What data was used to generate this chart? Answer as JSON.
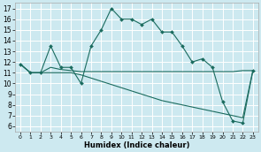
{
  "xlabel": "Humidex (Indice chaleur)",
  "bg_color": "#cde9f0",
  "grid_color": "#ffffff",
  "line_color": "#1a6b5e",
  "xlim": [
    -0.5,
    23.5
  ],
  "ylim": [
    5.5,
    17.5
  ],
  "xticks": [
    0,
    1,
    2,
    3,
    4,
    5,
    6,
    7,
    8,
    9,
    10,
    11,
    12,
    13,
    14,
    15,
    16,
    17,
    18,
    19,
    20,
    21,
    22,
    23
  ],
  "yticks": [
    6,
    7,
    8,
    9,
    10,
    11,
    12,
    13,
    14,
    15,
    16,
    17
  ],
  "s1_x": [
    0,
    1,
    2,
    3,
    4,
    5,
    6,
    7,
    8,
    9,
    10,
    11,
    12,
    13,
    14,
    15,
    16,
    17,
    18,
    19,
    20,
    21,
    22,
    23
  ],
  "s1_y": [
    11.8,
    11.0,
    11.0,
    13.5,
    11.5,
    11.5,
    10.0,
    13.5,
    15.0,
    17.0,
    16.0,
    16.0,
    15.5,
    16.0,
    14.8,
    14.8,
    13.5,
    12.0,
    12.3,
    11.5,
    8.3,
    6.5,
    6.3,
    11.2
  ],
  "s2_x": [
    0,
    1,
    2,
    3,
    4,
    5,
    6,
    7,
    8,
    9,
    10,
    11,
    12,
    13,
    14,
    15,
    16,
    17,
    18,
    19,
    20,
    21,
    22,
    23
  ],
  "s2_y": [
    11.8,
    11.0,
    11.0,
    11.5,
    11.3,
    11.2,
    11.1,
    11.1,
    11.1,
    11.1,
    11.1,
    11.1,
    11.1,
    11.1,
    11.1,
    11.1,
    11.1,
    11.1,
    11.1,
    11.1,
    11.1,
    11.1,
    11.2,
    11.2
  ],
  "s3_x": [
    0,
    1,
    2,
    3,
    4,
    5,
    6,
    7,
    8,
    9,
    10,
    11,
    12,
    13,
    14,
    15,
    16,
    17,
    18,
    19,
    20,
    21,
    22,
    23
  ],
  "s3_y": [
    11.8,
    11.0,
    11.0,
    11.0,
    11.0,
    11.0,
    10.8,
    10.5,
    10.2,
    9.9,
    9.6,
    9.3,
    9.0,
    8.7,
    8.4,
    8.2,
    8.0,
    7.8,
    7.6,
    7.4,
    7.2,
    7.0,
    6.8,
    11.2
  ]
}
